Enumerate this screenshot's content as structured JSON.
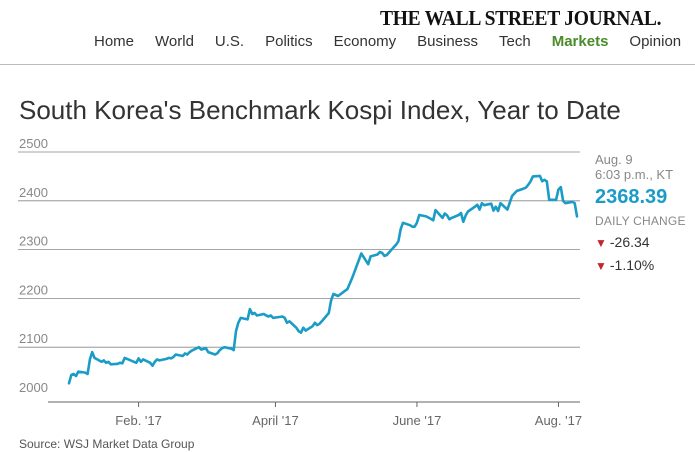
{
  "header": {
    "masthead": "THE WALL STREET JOURNAL.",
    "nav": [
      "Home",
      "World",
      "U.S.",
      "Politics",
      "Economy",
      "Business",
      "Tech",
      "Markets",
      "Opinion"
    ],
    "active_nav": "Markets",
    "colors": {
      "active": "#4a8c2a",
      "text": "#333333"
    }
  },
  "readout": {
    "date": "Aug. 9",
    "time": "6:03 p.m., KT",
    "price": "2368.39",
    "daily_change_label": "DAILY CHANGE",
    "change_points": "-26.34",
    "change_percent": "-1.10%",
    "colors": {
      "price": "#1a9cc7",
      "down": "#c0262d"
    }
  },
  "source": "Source: WSJ Market Data Group",
  "chart_data": {
    "type": "line",
    "title": "South Korea's Benchmark Kospi Index, Year to Date",
    "xlabel": "",
    "ylabel": "",
    "ylim": [
      2000,
      2500
    ],
    "yticks": [
      2500,
      2400,
      2300,
      2200,
      2100,
      2000
    ],
    "xtick_labels": [
      "Feb. '17",
      "April '17",
      "June '17",
      "Aug. '17"
    ],
    "xtick_dates": [
      "2017-02-01",
      "2017-04-01",
      "2017-06-01",
      "2017-08-01"
    ],
    "xlim": [
      "2017-01-02",
      "2017-08-09"
    ],
    "grid": true,
    "series": [
      {
        "color": "#1a9cc7",
        "points": [
          [
            "2017-01-02",
            2026
          ],
          [
            "2017-01-03",
            2043
          ],
          [
            "2017-01-04",
            2045
          ],
          [
            "2017-01-05",
            2041
          ],
          [
            "2017-01-06",
            2050
          ],
          [
            "2017-01-09",
            2048
          ],
          [
            "2017-01-10",
            2045
          ],
          [
            "2017-01-11",
            2075
          ],
          [
            "2017-01-12",
            2090
          ],
          [
            "2017-01-13",
            2078
          ],
          [
            "2017-01-16",
            2070
          ],
          [
            "2017-01-17",
            2073
          ],
          [
            "2017-01-18",
            2068
          ],
          [
            "2017-01-19",
            2070
          ],
          [
            "2017-01-20",
            2065
          ],
          [
            "2017-01-23",
            2066
          ],
          [
            "2017-01-24",
            2068
          ],
          [
            "2017-01-25",
            2067
          ],
          [
            "2017-01-26",
            2078
          ],
          [
            "2017-01-31",
            2068
          ],
          [
            "2017-02-01",
            2077
          ],
          [
            "2017-02-02",
            2070
          ],
          [
            "2017-02-03",
            2075
          ],
          [
            "2017-02-06",
            2068
          ],
          [
            "2017-02-07",
            2062
          ],
          [
            "2017-02-08",
            2070
          ],
          [
            "2017-02-09",
            2075
          ],
          [
            "2017-02-10",
            2073
          ],
          [
            "2017-02-13",
            2076
          ],
          [
            "2017-02-14",
            2078
          ],
          [
            "2017-02-15",
            2077
          ],
          [
            "2017-02-16",
            2080
          ],
          [
            "2017-02-17",
            2085
          ],
          [
            "2017-02-20",
            2082
          ],
          [
            "2017-02-21",
            2087
          ],
          [
            "2017-02-22",
            2085
          ],
          [
            "2017-02-23",
            2090
          ],
          [
            "2017-02-24",
            2093
          ],
          [
            "2017-02-27",
            2100
          ],
          [
            "2017-02-28",
            2095
          ],
          [
            "2017-03-02",
            2098
          ],
          [
            "2017-03-03",
            2090
          ],
          [
            "2017-03-06",
            2085
          ],
          [
            "2017-03-07",
            2088
          ],
          [
            "2017-03-08",
            2094
          ],
          [
            "2017-03-09",
            2098
          ],
          [
            "2017-03-10",
            2100
          ],
          [
            "2017-03-13",
            2097
          ],
          [
            "2017-03-14",
            2094
          ],
          [
            "2017-03-15",
            2133
          ],
          [
            "2017-03-16",
            2150
          ],
          [
            "2017-03-17",
            2160
          ],
          [
            "2017-03-20",
            2157
          ],
          [
            "2017-03-21",
            2178
          ],
          [
            "2017-03-22",
            2168
          ],
          [
            "2017-03-23",
            2170
          ],
          [
            "2017-03-24",
            2165
          ],
          [
            "2017-03-27",
            2168
          ],
          [
            "2017-03-28",
            2165
          ],
          [
            "2017-03-29",
            2163
          ],
          [
            "2017-03-30",
            2165
          ],
          [
            "2017-03-31",
            2160
          ],
          [
            "2017-04-03",
            2162
          ],
          [
            "2017-04-04",
            2163
          ],
          [
            "2017-04-05",
            2160
          ],
          [
            "2017-04-06",
            2150
          ],
          [
            "2017-04-07",
            2153
          ],
          [
            "2017-04-10",
            2140
          ],
          [
            "2017-04-11",
            2133
          ],
          [
            "2017-04-12",
            2130
          ],
          [
            "2017-04-13",
            2140
          ],
          [
            "2017-04-14",
            2134
          ],
          [
            "2017-04-17",
            2143
          ],
          [
            "2017-04-18",
            2150
          ],
          [
            "2017-04-19",
            2145
          ],
          [
            "2017-04-20",
            2148
          ],
          [
            "2017-04-21",
            2153
          ],
          [
            "2017-04-24",
            2170
          ],
          [
            "2017-04-25",
            2196
          ],
          [
            "2017-04-26",
            2209
          ],
          [
            "2017-04-27",
            2207
          ],
          [
            "2017-04-28",
            2205
          ],
          [
            "2017-05-02",
            2219
          ],
          [
            "2017-05-04",
            2241
          ],
          [
            "2017-05-08",
            2292
          ],
          [
            "2017-05-11",
            2270
          ],
          [
            "2017-05-12",
            2286
          ],
          [
            "2017-05-15",
            2290
          ],
          [
            "2017-05-16",
            2295
          ],
          [
            "2017-05-17",
            2293
          ],
          [
            "2017-05-18",
            2287
          ],
          [
            "2017-05-19",
            2289
          ],
          [
            "2017-05-22",
            2305
          ],
          [
            "2017-05-23",
            2310
          ],
          [
            "2017-05-24",
            2317
          ],
          [
            "2017-05-25",
            2342
          ],
          [
            "2017-05-26",
            2355
          ],
          [
            "2017-05-29",
            2350
          ],
          [
            "2017-05-30",
            2347
          ],
          [
            "2017-05-31",
            2347
          ],
          [
            "2017-06-01",
            2355
          ],
          [
            "2017-06-02",
            2371
          ],
          [
            "2017-06-05",
            2368
          ],
          [
            "2017-06-07",
            2363
          ],
          [
            "2017-06-08",
            2360
          ],
          [
            "2017-06-09",
            2381
          ],
          [
            "2017-06-12",
            2365
          ],
          [
            "2017-06-13",
            2374
          ],
          [
            "2017-06-14",
            2370
          ],
          [
            "2017-06-15",
            2362
          ],
          [
            "2017-06-16",
            2365
          ],
          [
            "2017-06-19",
            2371
          ],
          [
            "2017-06-20",
            2375
          ],
          [
            "2017-06-21",
            2357
          ],
          [
            "2017-06-22",
            2370
          ],
          [
            "2017-06-23",
            2378
          ],
          [
            "2017-06-26",
            2388
          ],
          [
            "2017-06-27",
            2392
          ],
          [
            "2017-06-28",
            2382
          ],
          [
            "2017-06-29",
            2395
          ],
          [
            "2017-06-30",
            2391
          ],
          [
            "2017-07-03",
            2394
          ],
          [
            "2017-07-04",
            2380
          ],
          [
            "2017-07-05",
            2388
          ],
          [
            "2017-07-06",
            2379
          ],
          [
            "2017-07-07",
            2395
          ],
          [
            "2017-07-10",
            2382
          ],
          [
            "2017-07-11",
            2396
          ],
          [
            "2017-07-12",
            2410
          ],
          [
            "2017-07-13",
            2415
          ],
          [
            "2017-07-14",
            2420
          ],
          [
            "2017-07-17",
            2425
          ],
          [
            "2017-07-18",
            2427
          ],
          [
            "2017-07-19",
            2433
          ],
          [
            "2017-07-20",
            2440
          ],
          [
            "2017-07-21",
            2450
          ],
          [
            "2017-07-24",
            2451
          ],
          [
            "2017-07-25",
            2440
          ],
          [
            "2017-07-26",
            2443
          ],
          [
            "2017-07-27",
            2440
          ],
          [
            "2017-07-28",
            2402
          ],
          [
            "2017-07-31",
            2402
          ],
          [
            "2017-08-01",
            2423
          ],
          [
            "2017-08-02",
            2428
          ],
          [
            "2017-08-03",
            2400
          ],
          [
            "2017-08-04",
            2395
          ],
          [
            "2017-08-07",
            2398
          ],
          [
            "2017-08-08",
            2395
          ],
          [
            "2017-08-09",
            2368
          ]
        ]
      }
    ]
  }
}
